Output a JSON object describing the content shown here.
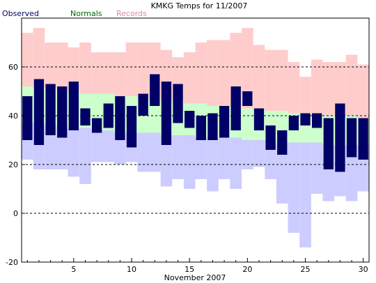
{
  "chart_data": {
    "type": "bar",
    "title": "KMKG Temps for 11/2007",
    "xlabel": "November 2007",
    "ylabel": "",
    "ylim": [
      -20,
      80
    ],
    "xlim": [
      0.5,
      30.5
    ],
    "grid": "dashed horizontal lines at y ticks",
    "legend": [
      {
        "name": "Observed",
        "color": "#000066"
      },
      {
        "name": "Normals",
        "color": "#006600"
      },
      {
        "name": "Records",
        "color": "#dd88aa"
      }
    ],
    "y_ticks": [
      -20,
      0,
      20,
      40,
      60
    ],
    "x_ticks": [
      5,
      10,
      15,
      20,
      25,
      30
    ],
    "days": [
      1,
      2,
      3,
      4,
      5,
      6,
      7,
      8,
      9,
      10,
      11,
      12,
      13,
      14,
      15,
      16,
      17,
      18,
      19,
      20,
      21,
      22,
      23,
      24,
      25,
      26,
      27,
      28,
      29,
      30
    ],
    "series": [
      {
        "name": "Observed",
        "color": "#000066",
        "low": [
          30,
          28,
          32,
          31,
          34,
          36,
          33,
          35,
          30,
          27,
          40,
          44,
          28,
          37,
          35,
          30,
          30,
          31,
          34,
          44,
          34,
          26,
          24,
          34,
          36,
          35,
          18,
          17,
          23,
          22
        ],
        "high": [
          48,
          55,
          53,
          52,
          54,
          43,
          39,
          45,
          48,
          44,
          49,
          57,
          54,
          53,
          42,
          40,
          41,
          44,
          52,
          50,
          43,
          36,
          34,
          40,
          41,
          41,
          39,
          45,
          39,
          39
        ]
      },
      {
        "name": "Normals",
        "color": "#ccffcc",
        "low": [
          37,
          37,
          36,
          36,
          35,
          35,
          34,
          34,
          33,
          33,
          33,
          33,
          32,
          32,
          32,
          31,
          31,
          31,
          31,
          30,
          30,
          30,
          29,
          29,
          29,
          29,
          28,
          28,
          28,
          28
        ],
        "high": [
          52,
          51,
          51,
          50,
          50,
          49,
          49,
          49,
          48,
          48,
          47,
          47,
          46,
          46,
          45,
          45,
          44,
          44,
          44,
          43,
          43,
          42,
          42,
          41,
          41,
          41,
          40,
          40,
          40,
          39
        ]
      },
      {
        "name": "Records",
        "color": "#ccccff",
        "low": [
          22,
          18,
          18,
          18,
          15,
          12,
          21,
          21,
          20,
          21,
          17,
          17,
          11,
          14,
          10,
          14,
          9,
          14,
          10,
          18,
          19,
          14,
          4,
          -8,
          -14,
          8,
          5,
          7,
          5,
          9
        ],
        "high": [
          74,
          76,
          70,
          70,
          68,
          70,
          66,
          66,
          66,
          70,
          70,
          70,
          67,
          64,
          66,
          70,
          71,
          71,
          74,
          76,
          69,
          67,
          67,
          62,
          56,
          63,
          62,
          62,
          65,
          61
        ]
      }
    ]
  }
}
